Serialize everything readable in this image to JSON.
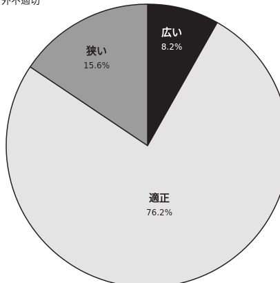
{
  "header_clip": "外不適切",
  "chart_data": {
    "type": "pie",
    "title": "",
    "slices": [
      {
        "label": "広い",
        "value": 8.2,
        "percent_label": "8.2%",
        "color": "#231f20",
        "text_color": "#ffffff"
      },
      {
        "label": "適正",
        "value": 76.2,
        "percent_label": "76.2%",
        "color": "#e4e4e4",
        "text_color": "#231f20"
      },
      {
        "label": "狭い",
        "value": 15.6,
        "percent_label": "15.6%",
        "color": "#9c9c9c",
        "text_color": "#231f20"
      }
    ],
    "start": "12 o'clock",
    "direction": "clockwise",
    "legend": "none"
  }
}
